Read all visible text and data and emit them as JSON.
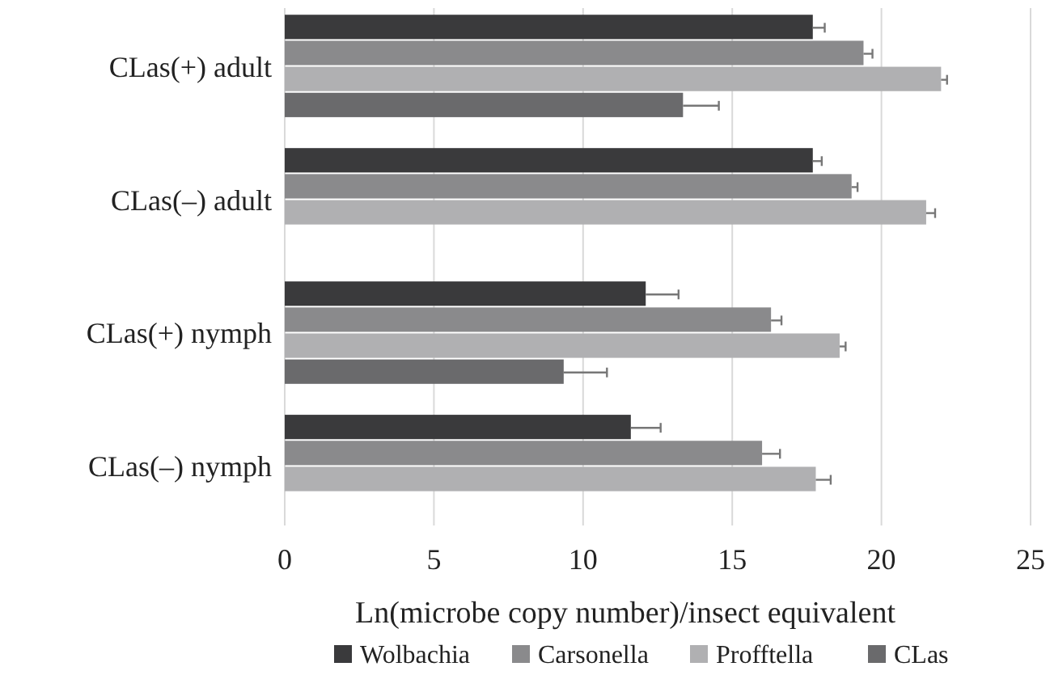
{
  "chart_data": {
    "type": "bar",
    "orientation": "horizontal",
    "xlabel": "Ln(microbe copy number)/insect equivalent",
    "categories": [
      "CLas(+) adult",
      "CLas(–) adult",
      "CLas(+) nymph",
      "CLas(–) nymph"
    ],
    "series": [
      {
        "name": "Wolbachia",
        "color": "#3a3a3c",
        "values": [
          17.7,
          17.7,
          12.1,
          11.6
        ],
        "errors": [
          [
            17.7,
            18.1
          ],
          [
            17.7,
            18.0
          ],
          [
            12.1,
            13.2
          ],
          [
            11.6,
            12.6
          ]
        ]
      },
      {
        "name": "Carsonella",
        "color": "#8a8a8c",
        "values": [
          19.4,
          19.0,
          16.3,
          16.0
        ],
        "errors": [
          [
            19.4,
            19.7
          ],
          [
            19.0,
            19.2
          ],
          [
            16.3,
            16.65
          ],
          [
            16.0,
            16.6
          ]
        ]
      },
      {
        "name": "Profftella",
        "color": "#b0b0b2",
        "values": [
          22.0,
          21.5,
          18.6,
          17.8
        ],
        "errors": [
          [
            22.0,
            22.2
          ],
          [
            21.5,
            21.8
          ],
          [
            18.6,
            18.8
          ],
          [
            17.8,
            18.3
          ]
        ]
      },
      {
        "name": "CLas",
        "color": "#6a6a6c",
        "values": [
          13.35,
          null,
          9.35,
          null
        ],
        "errors": [
          [
            13.35,
            14.55
          ],
          null,
          [
            9.35,
            10.8
          ],
          null
        ]
      }
    ],
    "xlim": [
      0,
      25
    ],
    "xticks": [
      0,
      5,
      10,
      15,
      20,
      25
    ],
    "grid": "x",
    "legend": "bottom"
  }
}
